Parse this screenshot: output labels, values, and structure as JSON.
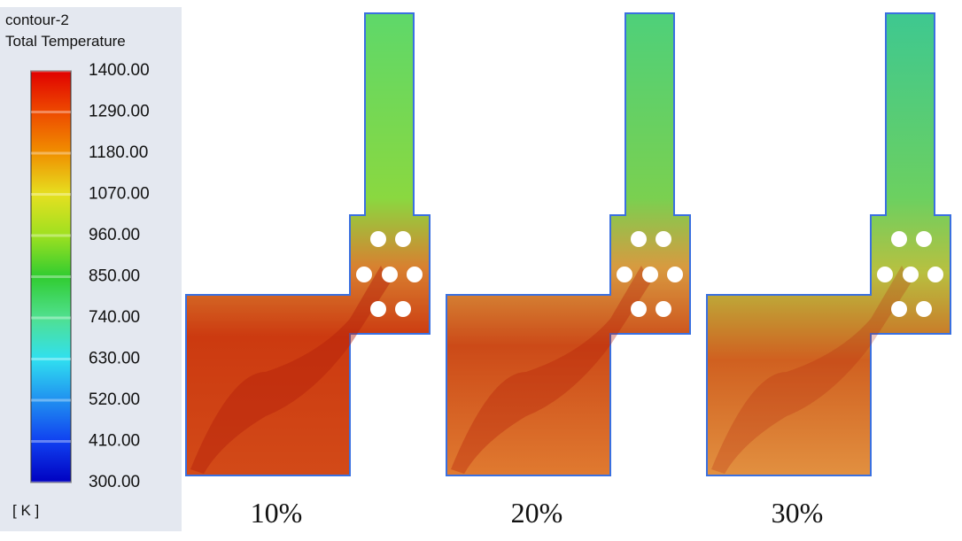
{
  "legend": {
    "title": "contour-2",
    "subtitle": "Total Temperature",
    "ticks": [
      "1400.00",
      "1290.00",
      "1180.00",
      "1070.00",
      "960.00",
      "850.00",
      "740.00",
      "630.00",
      "520.00",
      "410.00",
      "300.00"
    ],
    "unit": "[ K ]"
  },
  "panels": [
    {
      "label": "10%"
    },
    {
      "label": "20%"
    },
    {
      "label": "30%"
    }
  ]
}
